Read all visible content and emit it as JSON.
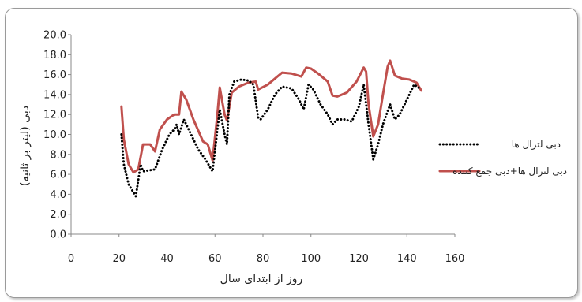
{
  "chart_data": {
    "type": "line",
    "title": "",
    "xlabel": "روز از ابتدای سال",
    "ylabel": "دبی (لیتر بر ثانیه)",
    "xlim": [
      0,
      160
    ],
    "ylim": [
      0,
      20
    ],
    "x_ticks": [
      0,
      20,
      40,
      60,
      80,
      100,
      120,
      140,
      160
    ],
    "y_ticks": [
      "0.0",
      "2.0",
      "4.0",
      "6.0",
      "8.0",
      "10.0",
      "12.0",
      "14.0",
      "16.0",
      "18.0",
      "20.0"
    ],
    "grid": false,
    "legend_position": "right",
    "series": [
      {
        "name": "دبی لترال ها",
        "color": "#000000",
        "style": "dotted",
        "points": [
          [
            21,
            10.0
          ],
          [
            22,
            7.0
          ],
          [
            24,
            5.0
          ],
          [
            27,
            3.8
          ],
          [
            29,
            7.0
          ],
          [
            30,
            6.3
          ],
          [
            35,
            6.5
          ],
          [
            38,
            8.5
          ],
          [
            41,
            10.0
          ],
          [
            43,
            10.5
          ],
          [
            44,
            11.0
          ],
          [
            45,
            10.0
          ],
          [
            47,
            11.5
          ],
          [
            50,
            10.0
          ],
          [
            53,
            8.5
          ],
          [
            56,
            7.5
          ],
          [
            59,
            6.3
          ],
          [
            62,
            12.5
          ],
          [
            64,
            10.0
          ],
          [
            65,
            9.0
          ],
          [
            66,
            14.0
          ],
          [
            68,
            15.3
          ],
          [
            71,
            15.5
          ],
          [
            74,
            15.4
          ],
          [
            76,
            15.0
          ],
          [
            78,
            11.7
          ],
          [
            79,
            11.5
          ],
          [
            82,
            12.5
          ],
          [
            85,
            14.0
          ],
          [
            88,
            14.8
          ],
          [
            92,
            14.6
          ],
          [
            95,
            13.5
          ],
          [
            97,
            12.5
          ],
          [
            99,
            15.0
          ],
          [
            101,
            14.5
          ],
          [
            104,
            13.0
          ],
          [
            107,
            12.0
          ],
          [
            109,
            11.0
          ],
          [
            111,
            11.5
          ],
          [
            114,
            11.5
          ],
          [
            117,
            11.3
          ],
          [
            120,
            12.8
          ],
          [
            122,
            15.0
          ],
          [
            124,
            11.0
          ],
          [
            126,
            7.5
          ],
          [
            128,
            9.0
          ],
          [
            130,
            11.0
          ],
          [
            133,
            13.0
          ],
          [
            135,
            11.5
          ],
          [
            137,
            12.0
          ],
          [
            140,
            13.5
          ],
          [
            143,
            15.0
          ],
          [
            146,
            14.5
          ]
        ]
      },
      {
        "name": "دبی لترال ها+دبی جمع کننده",
        "color": "#c0504d",
        "style": "solid",
        "points": [
          [
            21,
            12.8
          ],
          [
            22,
            9.5
          ],
          [
            24,
            7.0
          ],
          [
            26,
            6.2
          ],
          [
            28,
            6.5
          ],
          [
            30,
            9.0
          ],
          [
            33,
            9.0
          ],
          [
            35,
            8.3
          ],
          [
            37,
            10.5
          ],
          [
            40,
            11.5
          ],
          [
            43,
            12.0
          ],
          [
            45,
            12.0
          ],
          [
            46,
            14.3
          ],
          [
            48,
            13.5
          ],
          [
            51,
            11.5
          ],
          [
            55,
            9.3
          ],
          [
            57,
            9.0
          ],
          [
            59,
            7.4
          ],
          [
            61,
            12.0
          ],
          [
            62,
            14.7
          ],
          [
            64,
            12.0
          ],
          [
            65,
            11.4
          ],
          [
            67,
            14.2
          ],
          [
            70,
            14.8
          ],
          [
            74,
            15.2
          ],
          [
            77,
            15.3
          ],
          [
            78,
            14.5
          ],
          [
            82,
            15.0
          ],
          [
            86,
            15.8
          ],
          [
            88,
            16.2
          ],
          [
            92,
            16.1
          ],
          [
            96,
            15.8
          ],
          [
            98,
            16.7
          ],
          [
            100,
            16.6
          ],
          [
            103,
            16.1
          ],
          [
            107,
            15.3
          ],
          [
            109,
            13.9
          ],
          [
            111,
            13.8
          ],
          [
            115,
            14.2
          ],
          [
            119,
            15.3
          ],
          [
            122,
            16.7
          ],
          [
            123,
            16.3
          ],
          [
            124,
            13.0
          ],
          [
            126,
            9.8
          ],
          [
            128,
            11.0
          ],
          [
            130,
            14.0
          ],
          [
            132,
            16.8
          ],
          [
            133,
            17.4
          ],
          [
            135,
            15.9
          ],
          [
            138,
            15.6
          ],
          [
            141,
            15.5
          ],
          [
            144,
            15.2
          ],
          [
            146,
            14.4
          ]
        ]
      }
    ]
  }
}
